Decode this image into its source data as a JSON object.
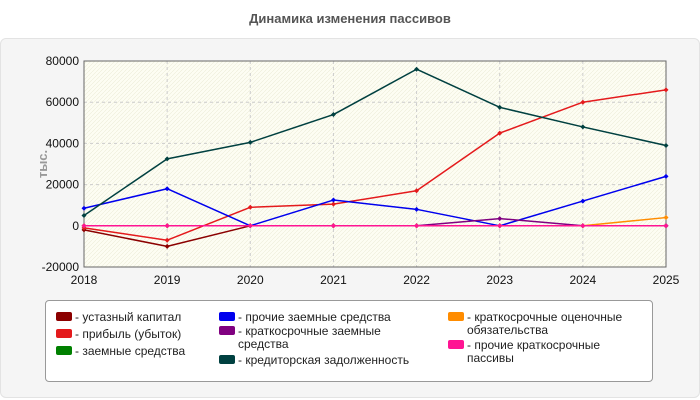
{
  "chart_data": {
    "type": "line",
    "title": "Динамика изменения пассивов",
    "ylabel": "тыс.",
    "xlabel": "",
    "x": [
      "2018",
      "2019",
      "2020",
      "2021",
      "2022",
      "2023",
      "2024",
      "2025"
    ],
    "ylim": [
      -20000,
      80000
    ],
    "yticks": [
      -20000,
      0,
      20000,
      40000,
      60000,
      80000
    ],
    "grid": true,
    "legend_position": "bottom",
    "series": [
      {
        "name": "устазный капитал",
        "color": "#8b0000",
        "values": [
          -2000,
          -10000,
          0,
          0,
          0,
          0,
          0,
          0
        ]
      },
      {
        "name": "прибыль (убыток)",
        "color": "#e41a1c",
        "values": [
          -1000,
          -7000,
          9000,
          10500,
          17000,
          45000,
          60000,
          66000
        ]
      },
      {
        "name": "заемные средства",
        "color": "#008000",
        "values": [
          0,
          0,
          0,
          0,
          0,
          0,
          0,
          0
        ]
      },
      {
        "name": "прочие заемные средства",
        "color": "#0000ee",
        "values": [
          8500,
          18000,
          0,
          12500,
          8000,
          0,
          12000,
          24000
        ]
      },
      {
        "name": "краткосрочные заемные средства",
        "color": "#800080",
        "values": [
          0,
          0,
          0,
          0,
          0,
          3500,
          0,
          0
        ]
      },
      {
        "name": "кредиторская задолженность",
        "color": "#004040",
        "values": [
          5000,
          32500,
          40500,
          54000,
          76000,
          57500,
          48000,
          39000
        ]
      },
      {
        "name": "краткосрочные оценочные обязательства",
        "color": "#ff8c00",
        "values": [
          0,
          0,
          0,
          0,
          0,
          0,
          0,
          4000
        ]
      },
      {
        "name": "прочие краткосрочные пассивы",
        "color": "#ff1493",
        "values": [
          0,
          0,
          0,
          0,
          0,
          0,
          0,
          0
        ]
      }
    ]
  }
}
